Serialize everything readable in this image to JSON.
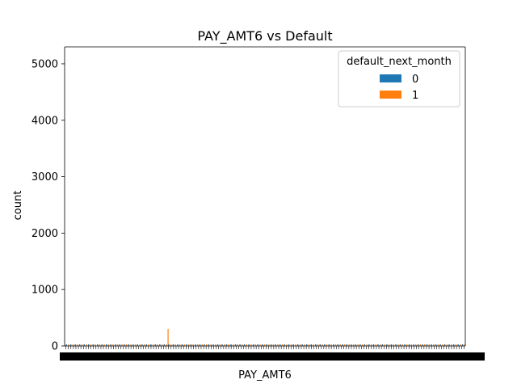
{
  "chart_data": {
    "type": "bar",
    "title": "PAY_AMT6 vs Default",
    "xlabel": "PAY_AMT6",
    "ylabel": "count",
    "ylim": [
      0,
      5300
    ],
    "yticks": [
      0,
      1000,
      2000,
      3000,
      4000,
      5000
    ],
    "grid": false,
    "legend": {
      "title": "default_next_month",
      "placement": "top-right",
      "entries": [
        {
          "label": "0",
          "color": "#1f77b4"
        },
        {
          "label": "1",
          "color": "#ff7f0e"
        }
      ]
    },
    "series": [
      {
        "name": "0",
        "color": "#1f77b4"
      },
      {
        "name": "1",
        "color": "#ff7f0e"
      }
    ],
    "x_tick_labels_note": "x tick labels are dense and illegibly overlapping",
    "notable_values": [
      {
        "series": "1",
        "category_fraction": 0.257,
        "value": 300
      }
    ]
  }
}
